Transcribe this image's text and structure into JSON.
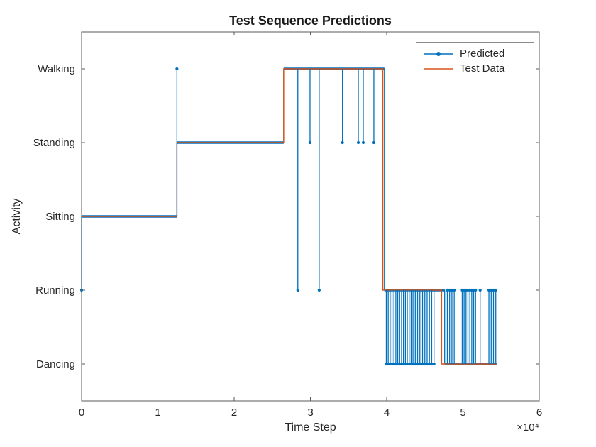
{
  "chart_data": {
    "type": "line",
    "title": "Test Sequence Predictions",
    "xlabel": "Time Step",
    "ylabel": "Activity",
    "xlim": [
      0,
      60000
    ],
    "x_ticks": [
      0,
      10000,
      20000,
      30000,
      40000,
      50000,
      60000
    ],
    "x_tick_labels": [
      "0",
      "1",
      "2",
      "3",
      "4",
      "5",
      "6"
    ],
    "x_tick_multiplier": "×10⁴",
    "y_categories": [
      "Dancing",
      "Running",
      "Sitting",
      "Standing",
      "Walking"
    ],
    "grid": false,
    "legend_position": "northeast",
    "axis_color": "#595959",
    "text_color": "#262626",
    "series": [
      {
        "name": "Predicted",
        "color": "#0072BD",
        "marker": "point",
        "segments": [
          {
            "x0": 0,
            "x1": 12500,
            "activity": "Sitting"
          },
          {
            "x0": 12500,
            "x1": 26500,
            "activity": "Standing"
          },
          {
            "x0": 26500,
            "x1": 39700,
            "activity": "Walking"
          },
          {
            "x0": 39700,
            "x1": 47600,
            "activity": "Running"
          },
          {
            "x0": 47600,
            "x1": 54400,
            "activity": "Dancing"
          }
        ],
        "spikes": [
          [
            0,
            "Running"
          ],
          [
            12500,
            "Walking"
          ],
          [
            28350,
            "Running"
          ],
          [
            29950,
            "Standing"
          ],
          [
            31150,
            "Running"
          ],
          [
            34200,
            "Standing"
          ],
          [
            36280,
            "Standing"
          ],
          [
            36930,
            "Standing"
          ],
          [
            38320,
            "Standing"
          ],
          [
            39950,
            "Dancing"
          ],
          [
            40200,
            "Dancing"
          ],
          [
            40450,
            "Dancing"
          ],
          [
            40700,
            "Dancing"
          ],
          [
            40950,
            "Dancing"
          ],
          [
            41200,
            "Dancing"
          ],
          [
            41450,
            "Dancing"
          ],
          [
            41700,
            "Dancing"
          ],
          [
            41950,
            "Dancing"
          ],
          [
            42200,
            "Dancing"
          ],
          [
            42450,
            "Dancing"
          ],
          [
            42700,
            "Dancing"
          ],
          [
            42950,
            "Dancing"
          ],
          [
            43200,
            "Dancing"
          ],
          [
            43450,
            "Dancing"
          ],
          [
            43750,
            "Dancing"
          ],
          [
            44050,
            "Dancing"
          ],
          [
            44350,
            "Dancing"
          ],
          [
            44700,
            "Dancing"
          ],
          [
            45000,
            "Dancing"
          ],
          [
            45300,
            "Dancing"
          ],
          [
            45600,
            "Dancing"
          ],
          [
            45900,
            "Dancing"
          ],
          [
            46200,
            "Dancing"
          ],
          [
            47950,
            "Running"
          ],
          [
            48250,
            "Running"
          ],
          [
            48550,
            "Running"
          ],
          [
            48850,
            "Running"
          ],
          [
            49900,
            "Running"
          ],
          [
            50150,
            "Running"
          ],
          [
            50400,
            "Running"
          ],
          [
            50650,
            "Running"
          ],
          [
            50900,
            "Running"
          ],
          [
            51150,
            "Running"
          ],
          [
            51400,
            "Running"
          ],
          [
            51650,
            "Running"
          ],
          [
            52250,
            "Running"
          ],
          [
            53400,
            "Running"
          ],
          [
            53700,
            "Running"
          ],
          [
            54000,
            "Running"
          ],
          [
            54300,
            "Running"
          ]
        ]
      },
      {
        "name": "Test Data",
        "color": "#D95319",
        "marker": "none",
        "segments": [
          {
            "x0": 0,
            "x1": 12500,
            "activity": "Sitting"
          },
          {
            "x0": 12500,
            "x1": 26500,
            "activity": "Standing"
          },
          {
            "x0": 26500,
            "x1": 39500,
            "activity": "Walking"
          },
          {
            "x0": 39500,
            "x1": 47200,
            "activity": "Running"
          },
          {
            "x0": 47200,
            "x1": 54400,
            "activity": "Dancing"
          }
        ]
      }
    ]
  }
}
